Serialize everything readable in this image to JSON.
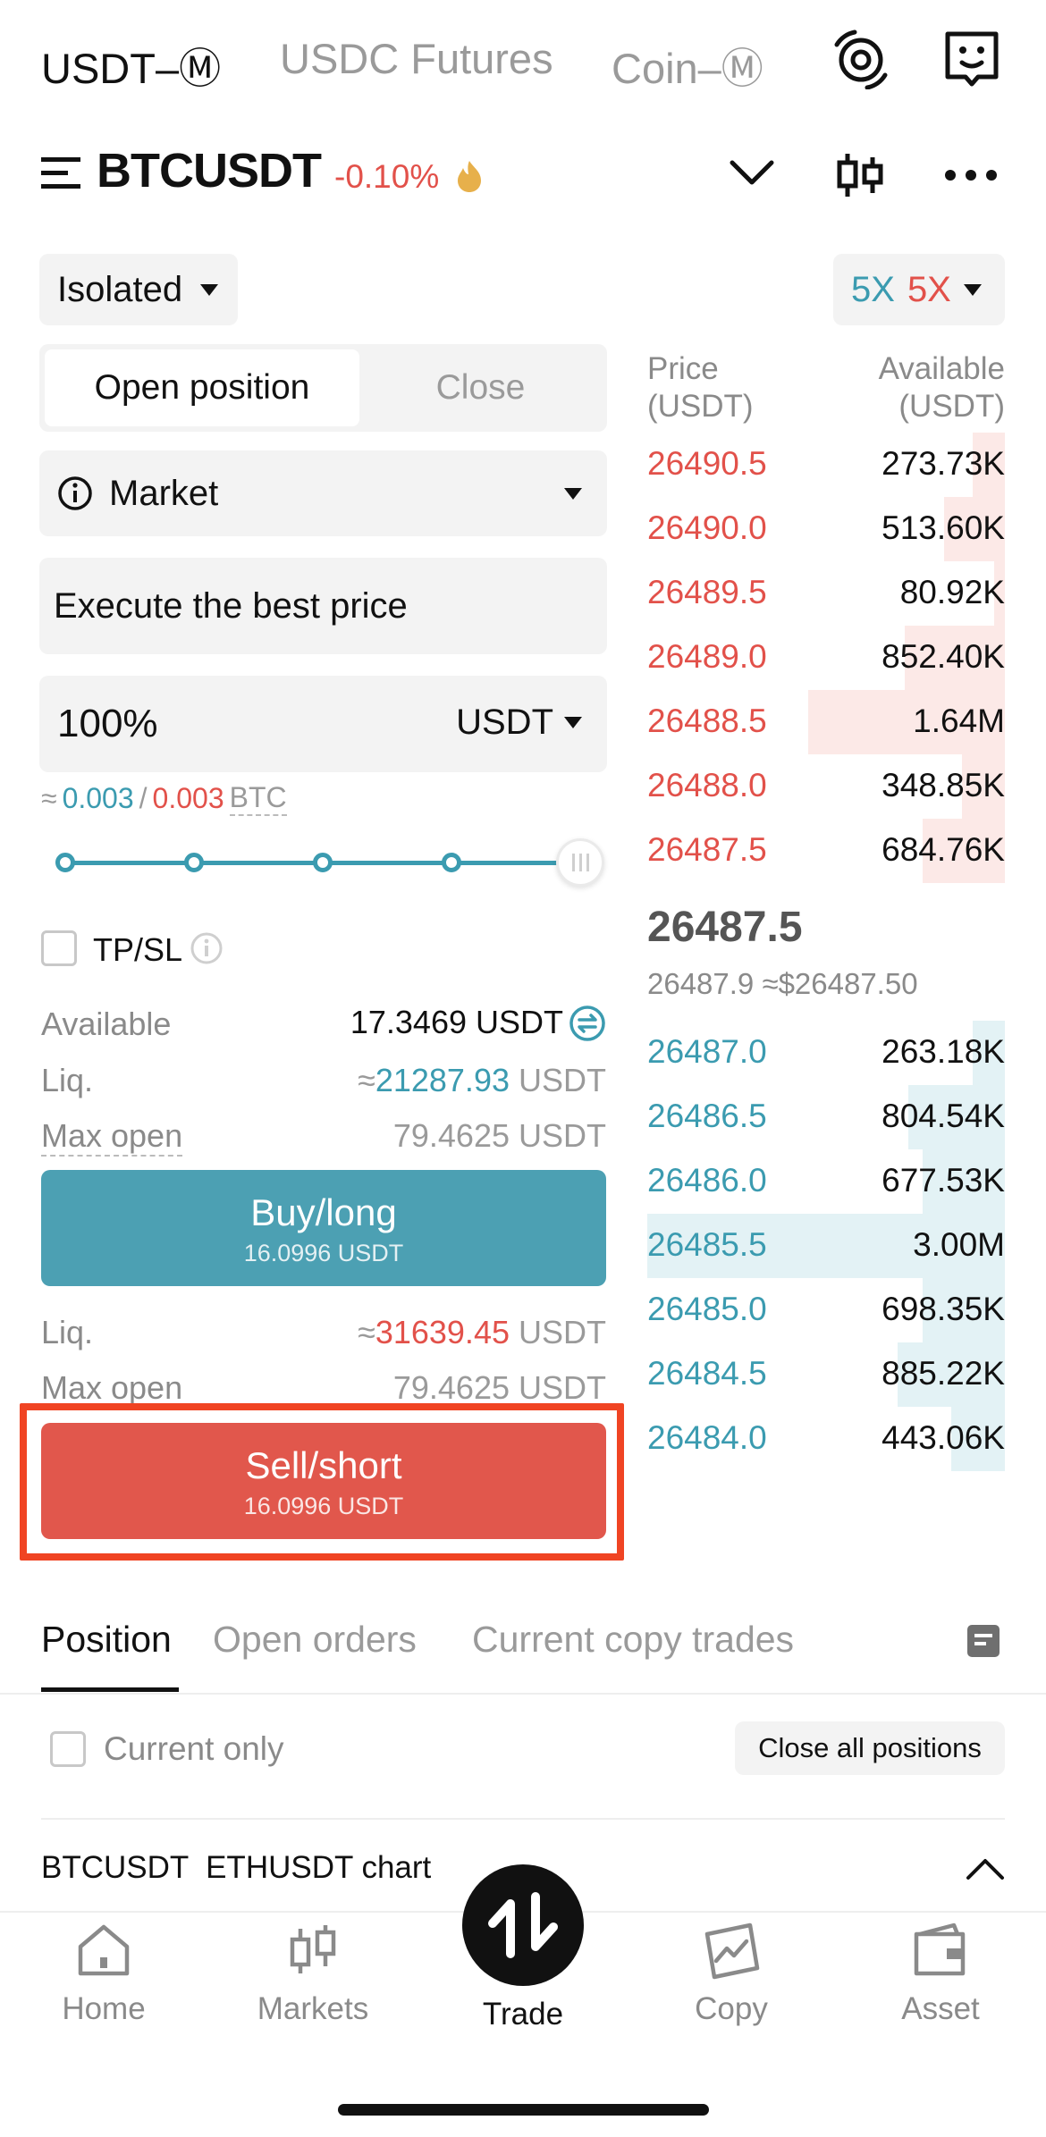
{
  "top_tabs": [
    "USDT–Ⓜ",
    "USDC Futures",
    "Coin–Ⓜ"
  ],
  "symbol": {
    "name": "BTCUSDT",
    "change": "-0.10%"
  },
  "margin_mode": "Isolated",
  "leverage": {
    "long": "5X",
    "short": "5X"
  },
  "trade_tabs": {
    "open": "Open position",
    "close": "Close"
  },
  "order_type": "Market",
  "price_field": "Execute the best price",
  "amount": {
    "value": "100%",
    "unit": "USDT"
  },
  "approx": {
    "prefix": "≈",
    "long": "0.003",
    "sep": "/",
    "short": "0.003",
    "asset": "BTC"
  },
  "slider": {
    "percent": 100
  },
  "tpsl_label": "TP/SL",
  "available": {
    "label": "Available",
    "value": "17.3469 USDT"
  },
  "long_info": {
    "liq_label": "Liq.",
    "liq_prefix": "≈",
    "liq_value": "21287.93",
    "liq_unit": "USDT",
    "max_label": "Max open",
    "max_value": "79.4625 USDT"
  },
  "buy_button": {
    "label": "Buy/long",
    "sub": "16.0996 USDT"
  },
  "short_info": {
    "liq_label": "Liq.",
    "liq_prefix": "≈",
    "liq_value": "31639.45",
    "liq_unit": "USDT",
    "max_label": "Max open",
    "max_value": "79.4625 USDT"
  },
  "sell_button": {
    "label": "Sell/short",
    "sub": "16.0996 USDT"
  },
  "orderbook": {
    "price_header": "Price",
    "price_unit": "(USDT)",
    "avail_header": "Available",
    "avail_unit": "(USDT)",
    "asks": [
      {
        "price": "26490.5",
        "amount": "273.73K",
        "depth": 0.09
      },
      {
        "price": "26490.0",
        "amount": "513.60K",
        "depth": 0.17
      },
      {
        "price": "26489.5",
        "amount": "80.92K",
        "depth": 0.03
      },
      {
        "price": "26489.0",
        "amount": "852.40K",
        "depth": 0.28
      },
      {
        "price": "26488.5",
        "amount": "1.64M",
        "depth": 0.55
      },
      {
        "price": "26488.0",
        "amount": "348.85K",
        "depth": 0.12
      },
      {
        "price": "26487.5",
        "amount": "684.76K",
        "depth": 0.23
      }
    ],
    "last_price": "26487.5",
    "mark_line": "26487.9 ≈$26487.50",
    "bids": [
      {
        "price": "26487.0",
        "amount": "263.18K",
        "depth": 0.09
      },
      {
        "price": "26486.5",
        "amount": "804.54K",
        "depth": 0.27
      },
      {
        "price": "26486.0",
        "amount": "677.53K",
        "depth": 0.23
      },
      {
        "price": "26485.5",
        "amount": "3.00M",
        "depth": 1.0
      },
      {
        "price": "26485.0",
        "amount": "698.35K",
        "depth": 0.23
      },
      {
        "price": "26484.5",
        "amount": "885.22K",
        "depth": 0.3
      },
      {
        "price": "26484.0",
        "amount": "443.06K",
        "depth": 0.15
      }
    ]
  },
  "position_tabs": [
    "Position",
    "Open orders",
    "Current copy trades"
  ],
  "current_only": "Current only",
  "close_all": "Close all positions",
  "chart_bar": "BTCUSDT  ETHUSDT chart",
  "nav": [
    "Home",
    "Markets",
    "Trade",
    "Copy",
    "Asset"
  ],
  "colors": {
    "red": "#e2514a",
    "teal": "#3b9bb0",
    "buy": "#4ca0b3",
    "sell": "#e1574c",
    "highlight": "#f04423"
  }
}
